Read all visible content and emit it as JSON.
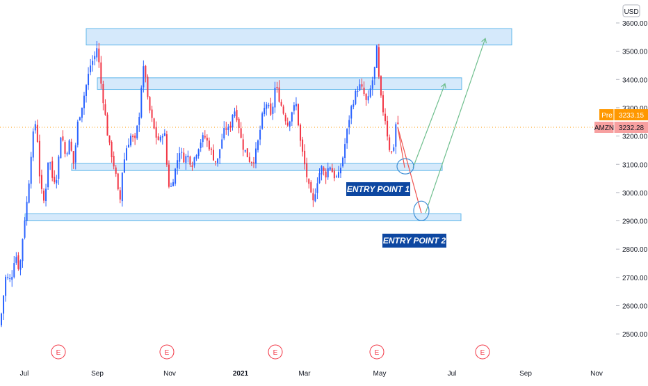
{
  "currency": "USD",
  "pre_label": {
    "tag": "Pre",
    "value": "3233.15"
  },
  "last_label": {
    "tag": "AMZN",
    "value": "3232.28"
  },
  "annotations": {
    "entry1": "ENTRY POINT 1",
    "entry2": "ENTRY POINT 2"
  },
  "earnings_marker": "E",
  "colors": {
    "up": "#2962ff",
    "down": "#f23645",
    "zone_fill": "#d5e9fb",
    "zone_stroke": "#5fb6ea",
    "label_bg": "#0d47a1",
    "label_text": "#ffffff",
    "pre_bg": "#ff9800",
    "last_bg": "#f7a0a0",
    "arrow_up": "#6fbf8e",
    "arrow_down": "#ef5350",
    "axis_text": "#131722",
    "earnings": "#f23645",
    "price_line": "#ff9800"
  },
  "chart_data": {
    "type": "candlestick",
    "title": "",
    "xlabel": "",
    "ylabel": "",
    "ylim": [
      2390,
      3660
    ],
    "x_ticks": [
      "Jul",
      "Sep",
      "Nov",
      "2021",
      "Mar",
      "May",
      "Jul",
      "Sep",
      "Nov"
    ],
    "y_ticks": [
      "3600.00",
      "3500.00",
      "3400.00",
      "3300.00",
      "3200.00",
      "3100.00",
      "3000.00",
      "2900.00",
      "2800.00",
      "2700.00",
      "2600.00",
      "2500.00"
    ],
    "price_path": [
      [
        0,
        2530
      ],
      [
        8,
        2700
      ],
      [
        16,
        2690
      ],
      [
        22,
        2790
      ],
      [
        28,
        2720
      ],
      [
        34,
        2880
      ],
      [
        40,
        2990
      ],
      [
        46,
        3180
      ],
      [
        52,
        3260
      ],
      [
        58,
        3020
      ],
      [
        64,
        2960
      ],
      [
        70,
        3140
      ],
      [
        76,
        3040
      ],
      [
        82,
        3060
      ],
      [
        88,
        3220
      ],
      [
        94,
        3130
      ],
      [
        100,
        3180
      ],
      [
        106,
        3100
      ],
      [
        112,
        3250
      ],
      [
        118,
        3310
      ],
      [
        124,
        3380
      ],
      [
        130,
        3450
      ],
      [
        136,
        3480
      ],
      [
        140,
        3520
      ],
      [
        144,
        3410
      ],
      [
        150,
        3300
      ],
      [
        156,
        3180
      ],
      [
        162,
        3120
      ],
      [
        168,
        3040
      ],
      [
        172,
        2950
      ],
      [
        176,
        3080
      ],
      [
        182,
        3160
      ],
      [
        188,
        3200
      ],
      [
        194,
        3180
      ],
      [
        200,
        3270
      ],
      [
        204,
        3400
      ],
      [
        208,
        3460
      ],
      [
        212,
        3330
      ],
      [
        218,
        3260
      ],
      [
        224,
        3200
      ],
      [
        230,
        3180
      ],
      [
        236,
        3230
      ],
      [
        242,
        3030
      ],
      [
        246,
        3020
      ],
      [
        252,
        3080
      ],
      [
        258,
        3150
      ],
      [
        264,
        3120
      ],
      [
        270,
        3130
      ],
      [
        276,
        3100
      ],
      [
        282,
        3140
      ],
      [
        288,
        3180
      ],
      [
        294,
        3200
      ],
      [
        300,
        3170
      ],
      [
        306,
        3130
      ],
      [
        312,
        3100
      ],
      [
        318,
        3180
      ],
      [
        324,
        3230
      ],
      [
        330,
        3220
      ],
      [
        336,
        3300
      ],
      [
        342,
        3260
      ],
      [
        348,
        3170
      ],
      [
        354,
        3140
      ],
      [
        360,
        3110
      ],
      [
        366,
        3120
      ],
      [
        372,
        3190
      ],
      [
        378,
        3280
      ],
      [
        384,
        3320
      ],
      [
        390,
        3260
      ],
      [
        396,
        3380
      ],
      [
        402,
        3330
      ],
      [
        408,
        3280
      ],
      [
        414,
        3240
      ],
      [
        420,
        3290
      ],
      [
        426,
        3310
      ],
      [
        432,
        3180
      ],
      [
        438,
        3100
      ],
      [
        444,
        3020
      ],
      [
        450,
        2960
      ],
      [
        456,
        3040
      ],
      [
        462,
        3090
      ],
      [
        468,
        3060
      ],
      [
        474,
        3100
      ],
      [
        480,
        3060
      ],
      [
        486,
        3050
      ],
      [
        492,
        3110
      ],
      [
        498,
        3200
      ],
      [
        504,
        3290
      ],
      [
        510,
        3340
      ],
      [
        516,
        3380
      ],
      [
        522,
        3360
      ],
      [
        528,
        3310
      ],
      [
        534,
        3380
      ],
      [
        538,
        3420
      ],
      [
        542,
        3510
      ],
      [
        546,
        3360
      ],
      [
        550,
        3300
      ],
      [
        554,
        3260
      ],
      [
        558,
        3190
      ],
      [
        562,
        3130
      ],
      [
        566,
        3160
      ],
      [
        570,
        3260
      ],
      [
        574,
        3232
      ]
    ],
    "resistance_zones": [
      {
        "price_high": 3580,
        "price_low": 3522
      },
      {
        "price_high": 3406,
        "price_low": 3365
      },
      {
        "price_high": 3103,
        "price_low": 3078
      },
      {
        "price_high": 2925,
        "price_low": 2900
      }
    ],
    "projections": [
      {
        "from": 3232,
        "to": 3088,
        "then": 3385
      },
      {
        "from": 3232,
        "to": 2928,
        "then": 3545
      }
    ],
    "earnings_dates": [
      "Jul",
      "Oct",
      "Jan",
      "Apr",
      "Jul"
    ],
    "current_price": 3232.28,
    "pre_market_price": 3233.15
  }
}
